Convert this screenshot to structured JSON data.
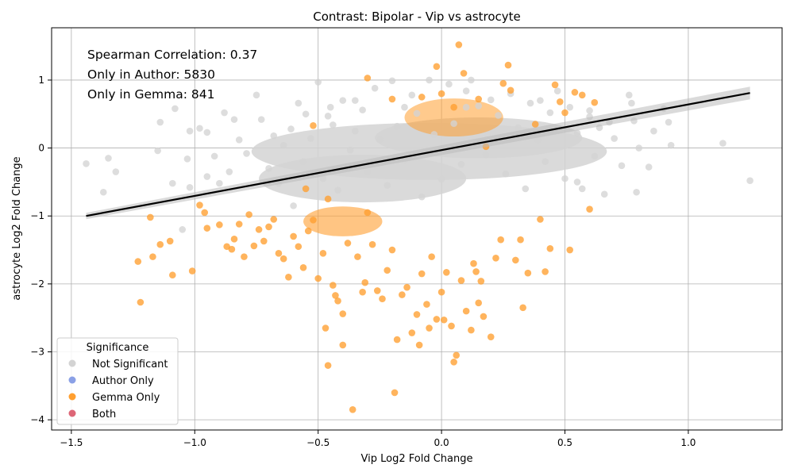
{
  "chart_data": {
    "type": "scatter",
    "title": "Contrast: Bipolar - Vip vs astrocyte",
    "xlabel": "Vip Log2 Fold Change",
    "ylabel": "astrocyte Log2 Fold Change",
    "xlim": [
      -1.58,
      1.38
    ],
    "ylim": [
      -4.15,
      1.77
    ],
    "xticks": [
      -1.5,
      -1.0,
      -0.5,
      0.0,
      0.5,
      1.0
    ],
    "xtick_labels": [
      "−1.5",
      "−1.0",
      "−0.5",
      "0.0",
      "0.5",
      "1.0"
    ],
    "yticks": [
      -4,
      -3,
      -2,
      -1,
      0,
      1
    ],
    "ytick_labels": [
      "−4",
      "−3",
      "−2",
      "−1",
      "0",
      "1"
    ],
    "grid": true,
    "annotations": [
      "Spearman Correlation: 0.37",
      "Only in Author: 5830",
      "Only in Gemma: 841"
    ],
    "legend": {
      "title": "Significance",
      "placement": "lower-left",
      "entries": [
        {
          "label": "Not Significant",
          "color": "#d3d3d3"
        },
        {
          "label": "Author Only",
          "color": "#8aa0e6"
        },
        {
          "label": "Gemma Only",
          "color": "#ff9f30"
        },
        {
          "label": "Both",
          "color": "#dd6677"
        }
      ]
    },
    "regression_line": {
      "x": [
        -1.44,
        1.25
      ],
      "y": [
        -1.0,
        0.81
      ],
      "color": "#000000"
    },
    "series": [
      {
        "name": "Not Significant",
        "color": "#d3d3d3",
        "points": [
          [
            -1.44,
            -0.23
          ],
          [
            -1.35,
            -0.15
          ],
          [
            -1.32,
            -0.35
          ],
          [
            -1.37,
            -0.65
          ],
          [
            -1.14,
            0.38
          ],
          [
            -1.15,
            -0.04
          ],
          [
            -1.09,
            -0.52
          ],
          [
            -1.08,
            0.58
          ],
          [
            -1.02,
            0.25
          ],
          [
            -0.98,
            0.29
          ],
          [
            -1.03,
            -0.16
          ],
          [
            -1.02,
            -0.58
          ],
          [
            -1.05,
            -1.2
          ],
          [
            -0.95,
            0.23
          ],
          [
            -0.92,
            -0.12
          ],
          [
            -0.88,
            0.52
          ],
          [
            -0.84,
            0.42
          ],
          [
            -0.82,
            0.12
          ],
          [
            -0.79,
            -0.08
          ],
          [
            -0.75,
            0.78
          ],
          [
            -0.73,
            0.42
          ],
          [
            -0.7,
            -0.3
          ],
          [
            -0.68,
            0.18
          ],
          [
            -0.66,
            -0.52
          ],
          [
            -0.64,
            0.04
          ],
          [
            -0.61,
            0.28
          ],
          [
            -0.58,
            0.66
          ],
          [
            -0.56,
            -0.2
          ],
          [
            -0.53,
            0.14
          ],
          [
            -0.5,
            0.97
          ],
          [
            -0.48,
            -0.45
          ],
          [
            -0.46,
            0.47
          ],
          [
            -0.44,
            0.34
          ],
          [
            -0.42,
            -0.62
          ],
          [
            -0.4,
            0.7
          ],
          [
            -0.37,
            -0.03
          ],
          [
            -0.35,
            0.25
          ],
          [
            -0.32,
            0.56
          ],
          [
            -0.3,
            -0.35
          ],
          [
            -0.27,
            0.88
          ],
          [
            -0.25,
            0.12
          ],
          [
            -0.22,
            -0.55
          ],
          [
            -0.2,
            0.99
          ],
          [
            -0.18,
            0.32
          ],
          [
            -0.15,
            -0.18
          ],
          [
            -0.12,
            0.78
          ],
          [
            -0.1,
            0.51
          ],
          [
            -0.08,
            -0.72
          ],
          [
            -0.05,
            1.0
          ],
          [
            -0.03,
            0.2
          ],
          [
            0.0,
            -0.46
          ],
          [
            0.03,
            0.94
          ],
          [
            0.05,
            0.36
          ],
          [
            0.08,
            -0.24
          ],
          [
            0.1,
            0.84
          ],
          [
            0.12,
            1.0
          ],
          [
            0.15,
            0.62
          ],
          [
            0.18,
            -0.1
          ],
          [
            0.2,
            0.71
          ],
          [
            0.23,
            0.48
          ],
          [
            0.26,
            -0.38
          ],
          [
            0.28,
            0.8
          ],
          [
            0.31,
            0.3
          ],
          [
            0.34,
            -0.6
          ],
          [
            0.36,
            0.66
          ],
          [
            0.39,
            0.12
          ],
          [
            0.42,
            -0.2
          ],
          [
            0.44,
            0.52
          ],
          [
            0.47,
            0.84
          ],
          [
            0.5,
            -0.45
          ],
          [
            0.52,
            0.6
          ],
          [
            0.55,
            0.22
          ],
          [
            0.57,
            -0.6
          ],
          [
            0.6,
            0.46
          ],
          [
            0.62,
            -0.12
          ],
          [
            0.64,
            0.3
          ],
          [
            0.66,
            -0.68
          ],
          [
            0.68,
            0.38
          ],
          [
            0.7,
            0.14
          ],
          [
            0.73,
            -0.26
          ],
          [
            0.76,
            0.78
          ],
          [
            0.77,
            0.66
          ],
          [
            0.79,
            -0.65
          ],
          [
            0.8,
            0.0
          ],
          [
            0.84,
            -0.28
          ],
          [
            0.86,
            0.25
          ],
          [
            0.9,
            0.58
          ],
          [
            0.92,
            0.38
          ],
          [
            0.93,
            0.04
          ],
          [
            1.14,
            0.07
          ],
          [
            1.25,
            -0.48
          ],
          [
            0.78,
            0.4
          ],
          [
            -0.9,
            -0.52
          ],
          [
            -0.95,
            -0.42
          ],
          [
            -0.86,
            -0.35
          ],
          [
            -0.6,
            -0.85
          ],
          [
            -0.55,
            0.5
          ],
          [
            -0.45,
            0.6
          ],
          [
            -0.35,
            0.7
          ],
          [
            -0.15,
            0.6
          ],
          [
            0.1,
            0.6
          ],
          [
            0.4,
            0.7
          ],
          [
            0.55,
            -0.5
          ],
          [
            0.6,
            0.55
          ]
        ]
      },
      {
        "name": "Gemma Only",
        "color": "#ff9f30",
        "points": [
          [
            -1.23,
            -1.67
          ],
          [
            -1.22,
            -2.27
          ],
          [
            -1.18,
            -1.02
          ],
          [
            -1.17,
            -1.6
          ],
          [
            -1.14,
            -1.42
          ],
          [
            -1.1,
            -1.37
          ],
          [
            -1.09,
            -1.87
          ],
          [
            -1.01,
            -1.81
          ],
          [
            -0.98,
            -0.84
          ],
          [
            -0.96,
            -0.95
          ],
          [
            -0.95,
            -1.18
          ],
          [
            -0.9,
            -1.13
          ],
          [
            -0.87,
            -1.45
          ],
          [
            -0.85,
            -1.49
          ],
          [
            -0.84,
            -1.34
          ],
          [
            -0.82,
            -1.12
          ],
          [
            -0.8,
            -1.6
          ],
          [
            -0.78,
            -0.98
          ],
          [
            -0.76,
            -1.44
          ],
          [
            -0.74,
            -1.2
          ],
          [
            -0.72,
            -1.37
          ],
          [
            -0.7,
            -1.16
          ],
          [
            -0.68,
            -1.05
          ],
          [
            -0.66,
            -1.55
          ],
          [
            -0.64,
            -1.63
          ],
          [
            -0.62,
            -1.9
          ],
          [
            -0.6,
            -1.3
          ],
          [
            -0.58,
            -1.45
          ],
          [
            -0.56,
            -1.76
          ],
          [
            -0.54,
            -1.22
          ],
          [
            -0.52,
            -1.06
          ],
          [
            -0.5,
            -1.92
          ],
          [
            -0.48,
            -1.55
          ],
          [
            -0.47,
            -2.65
          ],
          [
            -0.46,
            -3.2
          ],
          [
            -0.44,
            -2.02
          ],
          [
            -0.43,
            -2.17
          ],
          [
            -0.42,
            -2.25
          ],
          [
            -0.4,
            -2.44
          ],
          [
            -0.4,
            -2.9
          ],
          [
            -0.38,
            -1.4
          ],
          [
            -0.36,
            -3.85
          ],
          [
            -0.34,
            -1.6
          ],
          [
            -0.32,
            -2.12
          ],
          [
            -0.31,
            -1.98
          ],
          [
            -0.3,
            1.03
          ],
          [
            -0.28,
            -1.42
          ],
          [
            -0.26,
            -2.1
          ],
          [
            -0.24,
            -2.22
          ],
          [
            -0.22,
            -1.8
          ],
          [
            -0.2,
            -1.5
          ],
          [
            -0.19,
            -3.6
          ],
          [
            -0.18,
            -2.82
          ],
          [
            -0.16,
            -2.16
          ],
          [
            -0.14,
            -2.05
          ],
          [
            -0.12,
            -2.72
          ],
          [
            -0.1,
            -2.45
          ],
          [
            -0.09,
            -2.9
          ],
          [
            -0.08,
            -1.85
          ],
          [
            -0.06,
            -2.3
          ],
          [
            -0.05,
            -2.65
          ],
          [
            -0.04,
            -1.6
          ],
          [
            -0.02,
            -2.52
          ],
          [
            0.0,
            -2.12
          ],
          [
            0.01,
            -2.53
          ],
          [
            0.02,
            -1.83
          ],
          [
            0.04,
            -2.62
          ],
          [
            0.05,
            -3.15
          ],
          [
            0.06,
            -3.05
          ],
          [
            0.07,
            1.52
          ],
          [
            0.08,
            -1.95
          ],
          [
            0.09,
            1.1
          ],
          [
            0.1,
            -2.4
          ],
          [
            0.12,
            -2.68
          ],
          [
            0.13,
            -1.7
          ],
          [
            0.14,
            -1.82
          ],
          [
            0.15,
            -2.28
          ],
          [
            0.16,
            -1.96
          ],
          [
            0.17,
            -2.48
          ],
          [
            0.18,
            0.02
          ],
          [
            0.2,
            -2.78
          ],
          [
            0.22,
            -1.62
          ],
          [
            0.24,
            -1.35
          ],
          [
            0.25,
            0.95
          ],
          [
            0.27,
            1.22
          ],
          [
            0.3,
            -1.65
          ],
          [
            0.32,
            -1.35
          ],
          [
            0.33,
            -2.35
          ],
          [
            0.35,
            -1.84
          ],
          [
            0.38,
            0.35
          ],
          [
            0.4,
            -1.05
          ],
          [
            0.42,
            -1.82
          ],
          [
            0.44,
            -1.48
          ],
          [
            0.46,
            0.93
          ],
          [
            0.48,
            0.68
          ],
          [
            0.5,
            0.52
          ],
          [
            0.52,
            -1.5
          ],
          [
            0.54,
            0.82
          ],
          [
            0.57,
            0.78
          ],
          [
            0.6,
            -0.9
          ],
          [
            0.62,
            0.67
          ],
          [
            -0.08,
            0.75
          ],
          [
            0.0,
            0.8
          ],
          [
            0.05,
            0.6
          ],
          [
            -0.2,
            0.72
          ],
          [
            0.15,
            0.72
          ],
          [
            0.28,
            0.85
          ],
          [
            -0.52,
            0.33
          ],
          [
            -0.55,
            -0.6
          ],
          [
            -0.46,
            -0.75
          ],
          [
            -0.3,
            -0.95
          ],
          [
            -0.02,
            1.2
          ]
        ]
      },
      {
        "name": "Author Only",
        "color": "#8aa0e6",
        "points": []
      },
      {
        "name": "Both",
        "color": "#dd6677",
        "points": []
      }
    ]
  }
}
